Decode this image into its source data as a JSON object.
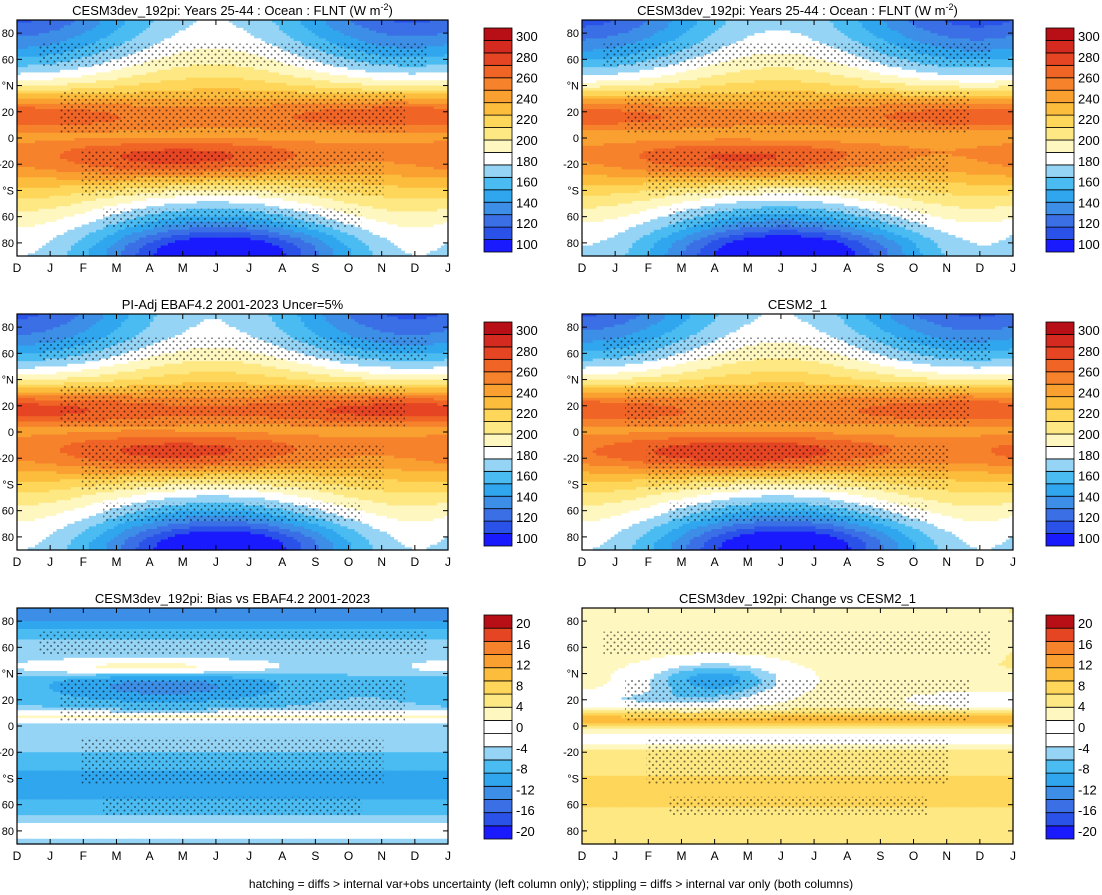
{
  "footnote": "hatching = diffs > internal var+obs uncertainty (left column only); stippling = diffs > internal var only (both columns)",
  "colors": {
    "abs_levels": [
      "#1a1aff",
      "#2b52e8",
      "#3b6fe6",
      "#3c8ee6",
      "#30a6ee",
      "#4bbcf2",
      "#96d4f5",
      "#ffffff",
      "#fff7c0",
      "#fde883",
      "#fdd65a",
      "#fcbd3d",
      "#f9a031",
      "#f6822c",
      "#f06426",
      "#e64523",
      "#d42a1f",
      "#b80f16"
    ],
    "diff_levels": [
      "#1a1aff",
      "#2b52e8",
      "#3b6fe6",
      "#3c8ee6",
      "#30a6ee",
      "#4bbcf2",
      "#96d4f5",
      "#ffffff",
      "#ffffff",
      "#fff7c0",
      "#fde883",
      "#fdd65a",
      "#fcbd3d",
      "#f9a031",
      "#f6822c",
      "#e64523",
      "#b80f16"
    ]
  },
  "axes": {
    "x_ticks": [
      "D",
      "J",
      "F",
      "M",
      "A",
      "M",
      "J",
      "J",
      "A",
      "S",
      "O",
      "N",
      "D",
      "J"
    ],
    "y_ticks": [
      "80",
      "60",
      "°N",
      "20",
      "0",
      "-20",
      "°S",
      "60",
      "80"
    ]
  },
  "colorbars": {
    "abs_labels": [
      "300",
      "280",
      "260",
      "240",
      "220",
      "200",
      "180",
      "160",
      "140",
      "120",
      "100"
    ],
    "diff_labels": [
      "20",
      "16",
      "12",
      "8",
      "4",
      "0",
      "-4",
      "-8",
      "-12",
      "-16",
      "-20"
    ]
  },
  "chart_data": [
    {
      "type": "heatmap",
      "title": "CESM3dev_192pi: Years 25-44 : Ocean : FLNT (W m",
      "title_sup": "-2",
      "title_end": ")",
      "variable": "FLNT",
      "units": "W m-2",
      "x": [
        "D",
        "J",
        "F",
        "M",
        "A",
        "M",
        "J",
        "J",
        "A",
        "S",
        "O",
        "N",
        "D",
        "J"
      ],
      "y": [
        90,
        -90
      ],
      "zlim": [
        100,
        300
      ],
      "kind": "abs",
      "model": "a"
    },
    {
      "type": "heatmap",
      "title": "CESM3dev_192pi: Years 25-44 : Ocean : FLNT (W m",
      "title_sup": "-2",
      "title_end": ")",
      "variable": "FLNT",
      "units": "W m-2",
      "x": [
        "D",
        "J",
        "F",
        "M",
        "A",
        "M",
        "J",
        "J",
        "A",
        "S",
        "O",
        "N",
        "D",
        "J"
      ],
      "y": [
        90,
        -90
      ],
      "zlim": [
        100,
        300
      ],
      "kind": "abs",
      "model": "a2"
    },
    {
      "type": "heatmap",
      "title": "PI-Adj EBAF4.2 2001-2023 Uncer=5%",
      "title_sup": "",
      "title_end": "",
      "units": "W m-2",
      "x": [
        "D",
        "J",
        "F",
        "M",
        "A",
        "M",
        "J",
        "J",
        "A",
        "S",
        "O",
        "N",
        "D",
        "J"
      ],
      "y": [
        90,
        -90
      ],
      "zlim": [
        100,
        300
      ],
      "kind": "abs",
      "model": "obs"
    },
    {
      "type": "heatmap",
      "title": "CESM2_1",
      "title_sup": "",
      "title_end": "",
      "units": "W m-2",
      "x": [
        "D",
        "J",
        "F",
        "M",
        "A",
        "M",
        "J",
        "J",
        "A",
        "S",
        "O",
        "N",
        "D",
        "J"
      ],
      "y": [
        90,
        -90
      ],
      "zlim": [
        100,
        300
      ],
      "kind": "abs",
      "model": "c2"
    },
    {
      "type": "heatmap",
      "title": "CESM3dev_192pi: Bias vs EBAF4.2 2001-2023",
      "title_sup": "",
      "title_end": "",
      "units": "W m-2",
      "x": [
        "D",
        "J",
        "F",
        "M",
        "A",
        "M",
        "J",
        "J",
        "A",
        "S",
        "O",
        "N",
        "D",
        "J"
      ],
      "y": [
        90,
        -90
      ],
      "zlim": [
        -20,
        20
      ],
      "kind": "diff",
      "model": "bias"
    },
    {
      "type": "heatmap",
      "title": "CESM3dev_192pi: Change vs CESM2_1",
      "title_sup": "",
      "title_end": "",
      "units": "W m-2",
      "x": [
        "D",
        "J",
        "F",
        "M",
        "A",
        "M",
        "J",
        "J",
        "A",
        "S",
        "O",
        "N",
        "D",
        "J"
      ],
      "y": [
        90,
        -90
      ],
      "zlim": [
        -20,
        20
      ],
      "kind": "diff",
      "model": "change"
    }
  ]
}
